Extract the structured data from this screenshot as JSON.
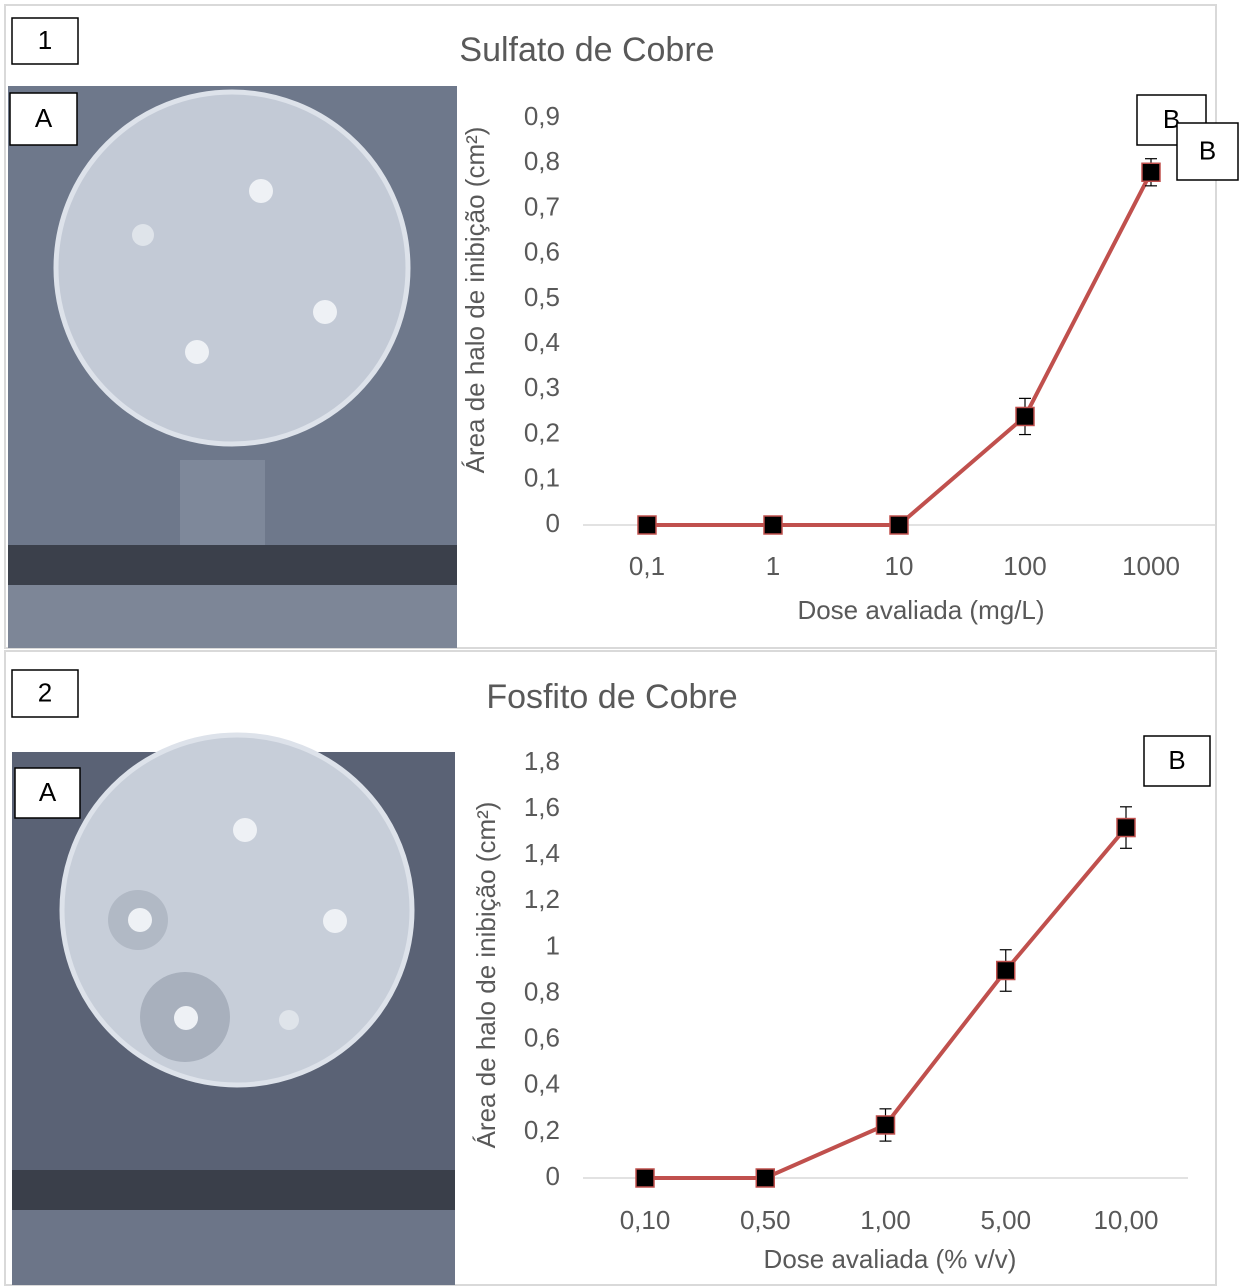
{
  "chart_data": [
    {
      "type": "line",
      "panel_label": "1",
      "photo_label": "A",
      "title": "Sulfato de Cobre",
      "x_label": "Dose avaliada (mg/L)",
      "y_label": "Área de halo  de inibição (cm²)",
      "categories": [
        "0,1",
        "1",
        "10",
        "100",
        "1000"
      ],
      "series": [
        {
          "color": "#c0504d",
          "values": [
            0,
            0,
            0,
            0.24,
            0.78
          ],
          "errors": [
            null,
            null,
            null,
            0.04,
            0.03
          ]
        }
      ],
      "ylim": [
        0,
        0.9
      ],
      "yticks": [
        0,
        {
          "value": 0.1,
          "label": "0,1"
        },
        {
          "value": 0.2,
          "label": "0,2"
        },
        {
          "value": 0.3,
          "label": "0,3"
        },
        {
          "value": 0.4,
          "label": "0,4"
        },
        {
          "value": 0.5,
          "label": "0,5"
        },
        {
          "value": 0.6,
          "label": "0,6"
        },
        {
          "value": 0.7,
          "label": "0,7"
        },
        {
          "value": 0.8,
          "label": "0,8"
        },
        {
          "value": 0.9,
          "label": "0,9"
        }
      ],
      "annotations": [
        "B",
        "B"
      ]
    },
    {
      "type": "line",
      "panel_label": "2",
      "photo_label": "A",
      "title": "Fosfito de Cobre",
      "x_label": "Dose avaliada (% v/v)",
      "y_label": "Área de halo  de inibição (cm²)",
      "categories": [
        "0,10",
        "0,50",
        "1,00",
        "5,00",
        "10,00"
      ],
      "series": [
        {
          "color": "#c0504d",
          "values": [
            0,
            0,
            0.23,
            0.9,
            1.52
          ],
          "errors": [
            null,
            null,
            0.07,
            0.09,
            0.09
          ]
        }
      ],
      "ylim": [
        0,
        1.8
      ],
      "yticks": [
        0,
        {
          "value": 0.2,
          "label": "0,2"
        },
        {
          "value": 0.4,
          "label": "0,4"
        },
        {
          "value": 0.6,
          "label": "0,6"
        },
        {
          "value": 0.8,
          "label": "0,8"
        },
        1,
        {
          "value": 1.2,
          "label": "1,2"
        },
        {
          "value": 1.4,
          "label": "1,4"
        },
        {
          "value": 1.6,
          "label": "1,6"
        },
        {
          "value": 1.8,
          "label": "1,8"
        }
      ],
      "annotations": [
        "B"
      ]
    }
  ]
}
